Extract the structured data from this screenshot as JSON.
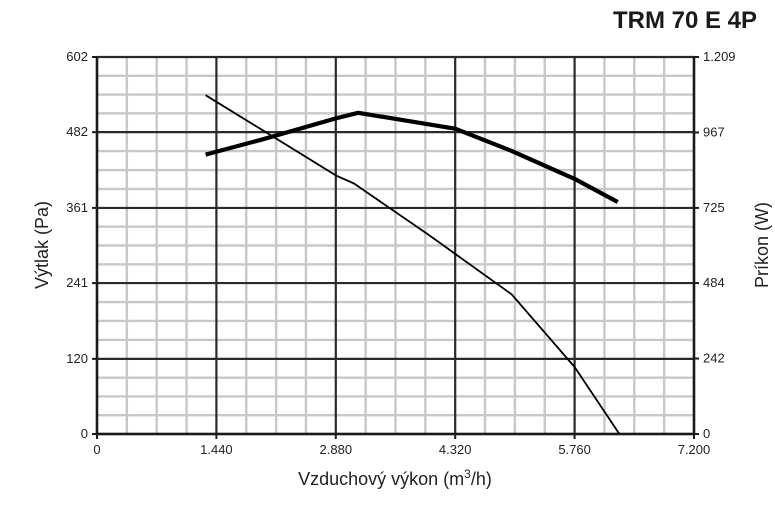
{
  "chart_data": {
    "type": "line",
    "title": "TRM 70 E 4P",
    "xlabel": "Vzduchový výkon (m",
    "xlabel_sup": "3",
    "xlabel_end": "/h)",
    "ylabel": "Výtlak (Pa)",
    "y2label": "Príkon (W)",
    "xlim": [
      0,
      7200
    ],
    "ylim": [
      0,
      602
    ],
    "y2lim": [
      0,
      1209
    ],
    "x_ticks": [
      0,
      1440,
      2880,
      4320,
      5760,
      7200
    ],
    "x_tick_labels": [
      "0",
      "1.440",
      "2.880",
      "4.320",
      "5.760",
      "7.200"
    ],
    "y_ticks": [
      0,
      120,
      241,
      361,
      482,
      602
    ],
    "y_tick_labels": [
      "0",
      "120",
      "241",
      "361",
      "482",
      "602"
    ],
    "y2_ticks": [
      0,
      242,
      484,
      725,
      967,
      1209
    ],
    "y2_tick_labels": [
      "0",
      "242",
      "484",
      "725",
      "967",
      "1.209"
    ],
    "grid": true,
    "series": [
      {
        "axis": "left",
        "values": [
          [
            1310,
            541
          ],
          [
            2000,
            485
          ],
          [
            2880,
            413
          ],
          [
            3100,
            400
          ],
          [
            4000,
            318
          ],
          [
            5000,
            223
          ],
          [
            5760,
            107
          ],
          [
            6300,
            0
          ]
        ]
      },
      {
        "axis": "right",
        "values": [
          [
            1310,
            896
          ],
          [
            2000,
            945
          ],
          [
            2880,
            1012
          ],
          [
            3150,
            1030
          ],
          [
            4320,
            979
          ],
          [
            5000,
            908
          ],
          [
            5760,
            818
          ],
          [
            6280,
            744
          ]
        ]
      }
    ],
    "colors": {
      "line": "#000000",
      "major_grid": "#2a2a2a",
      "minor_grid": "#c8c8c8"
    }
  }
}
